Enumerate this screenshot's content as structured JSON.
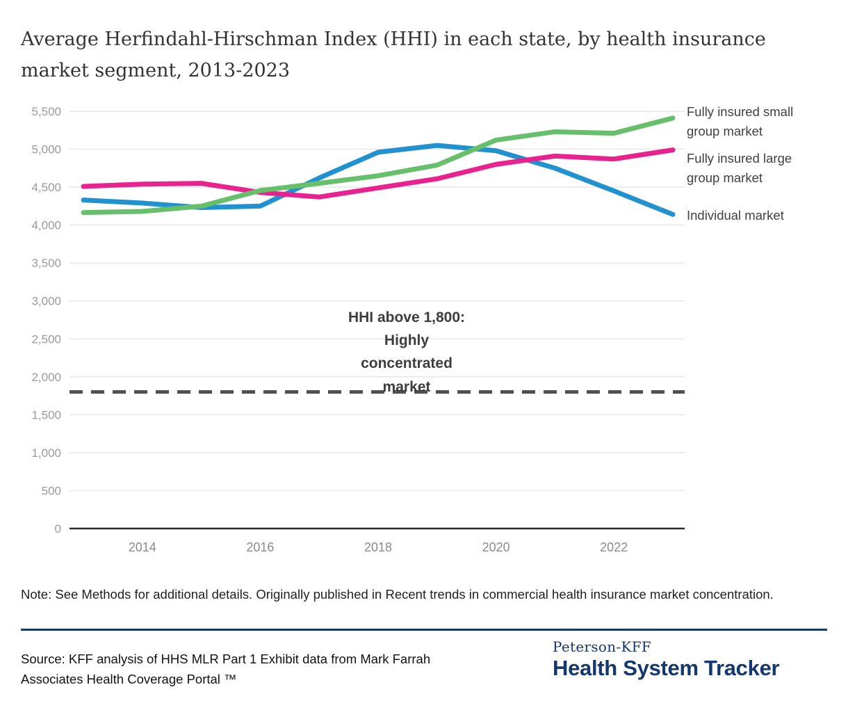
{
  "page": {
    "title": "Average Herfindahl-Hirschman Index (HHI) in each state, by health insurance market segment, 2013-2023",
    "note": "Note: See Methods for additional details. Originally published in Recent trends in commercial health insurance market concentration.",
    "source": "Source: KFF analysis of HHS MLR Part 1 Exhibit data from Mark Farrah Associates Health Coverage Portal ™",
    "logo": {
      "top": "Peterson-KFF",
      "bottom": "Health System Tracker"
    }
  },
  "colors": {
    "small_group_green": "#67bf6b",
    "large_group_pink": "#e8238f",
    "individual_blue": "#2191d0",
    "navy": "#14386e",
    "gridline": "#e7e7e7",
    "axis_line": "#2b2b2b",
    "tick_label": "#9a9a9a",
    "x_tick_label": "#8a8a8a",
    "threshold_dash": "#4f4f4f"
  },
  "chart_data": {
    "type": "line",
    "title": "Average Herfindahl-Hirschman Index (HHI) in each state, by health insurance market segment, 2013-2023",
    "x": [
      2013,
      2014,
      2015,
      2016,
      2017,
      2018,
      2019,
      2020,
      2021,
      2022,
      2023
    ],
    "x_ticks": [
      2014,
      2016,
      2018,
      2020,
      2022
    ],
    "ylim": [
      0,
      5500
    ],
    "y_tick_step": 500,
    "grid": true,
    "legend_position": "right-of-lines",
    "series": [
      {
        "name": "Individual market",
        "color": "#2191d0",
        "values": [
          4330,
          4290,
          4230,
          4250,
          4620,
          4960,
          5050,
          4980,
          4750,
          4450,
          4140
        ]
      },
      {
        "name": "Fully insured large group market",
        "color": "#e8238f",
        "values": [
          4510,
          4540,
          4550,
          4430,
          4370,
          4490,
          4610,
          4800,
          4910,
          4870,
          4990
        ]
      },
      {
        "name": "Fully insured small group market",
        "color": "#67bf6b",
        "values": [
          4165,
          4180,
          4250,
          4455,
          4550,
          4650,
          4790,
          5120,
          5230,
          5210,
          5410
        ]
      }
    ],
    "threshold": {
      "value": 1800,
      "label": "HHI above 1,800:\nHighly\nconcentrated\nmarket",
      "style": "dashed"
    }
  }
}
